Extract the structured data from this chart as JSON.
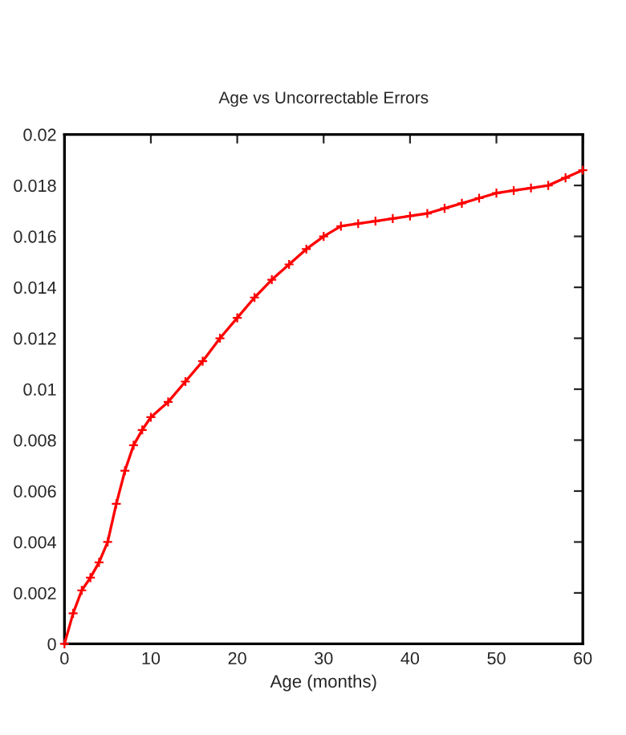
{
  "chart_data": {
    "type": "line",
    "title": "Age vs Uncorrectable Errors",
    "xlabel": "Age (months)",
    "x": [
      0,
      1,
      2,
      3,
      4,
      5,
      6,
      7,
      8,
      9,
      10,
      12,
      14,
      16,
      18,
      20,
      22,
      24,
      26,
      28,
      30,
      32,
      34,
      36,
      38,
      40,
      42,
      44,
      46,
      48,
      50,
      52,
      54,
      56,
      58,
      60
    ],
    "series": [
      {
        "color": "#ff0000",
        "values": [
          0,
          0.0012,
          0.0021,
          0.0026,
          0.0032,
          0.004,
          0.0055,
          0.0068,
          0.0078,
          0.0084,
          0.0089,
          0.0095,
          0.0103,
          0.0111,
          0.012,
          0.0128,
          0.0136,
          0.0143,
          0.0149,
          0.0155,
          0.016,
          0.0164,
          0.0165,
          0.0166,
          0.0167,
          0.0168,
          0.0169,
          0.0171,
          0.0173,
          0.0175,
          0.0177,
          0.0178,
          0.0179,
          0.018,
          0.0183,
          0.0186
        ]
      }
    ],
    "xlim": [
      0,
      60
    ],
    "xticks": [
      0,
      10,
      20,
      30,
      40,
      50,
      60
    ],
    "ylim": [
      0,
      0.02
    ],
    "yticks": [
      0,
      0.002,
      0.004,
      0.006,
      0.008,
      0.01,
      0.012,
      0.014,
      0.016,
      0.018,
      0.02
    ],
    "marker": "cross",
    "line_style": "solid",
    "grid": false
  }
}
